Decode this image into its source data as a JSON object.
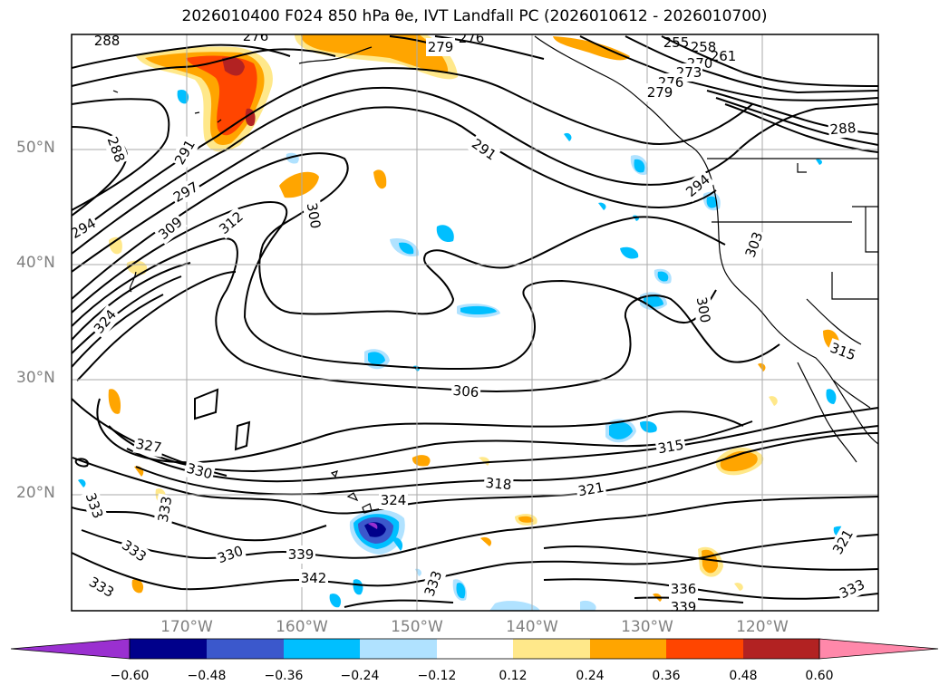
{
  "title": "2026010400 F024 850 hPa θe, IVT Landfall PC (2026010612 - 2026010700)",
  "map": {
    "lat_labels": [
      "50°N",
      "40°N",
      "30°N",
      "20°N"
    ],
    "lon_labels": [
      "170°W",
      "160°W",
      "150°W",
      "140°W",
      "130°W",
      "120°W"
    ],
    "grid": true,
    "contour_field": "850 hPa θe",
    "contour_labels": [
      "288",
      "288",
      "276",
      "279",
      "276",
      "255",
      "258",
      "261",
      "270",
      "273",
      "276",
      "279",
      "291",
      "291",
      "297",
      "294",
      "309",
      "312",
      "300",
      "294",
      "303",
      "324",
      "300",
      "306",
      "315",
      "327",
      "330",
      "318",
      "321",
      "324",
      "333",
      "333",
      "333",
      "333",
      "330",
      "339",
      "342",
      "333",
      "336",
      "339",
      "321",
      "333",
      "288",
      "315"
    ],
    "shading_field": "IVT Landfall PC"
  },
  "colorbar": {
    "ticks": [
      "−0.60",
      "−0.48",
      "−0.36",
      "−0.24",
      "−0.12",
      "0.12",
      "0.24",
      "0.36",
      "0.48",
      "0.60"
    ],
    "colors": [
      "#9a30d0",
      "#00008b",
      "#3b58cc",
      "#00bfff",
      "#b0e2ff",
      "#ffffff",
      "#ffe88a",
      "#ffa500",
      "#ff4500",
      "#b22222",
      "#ff88aa"
    ]
  }
}
